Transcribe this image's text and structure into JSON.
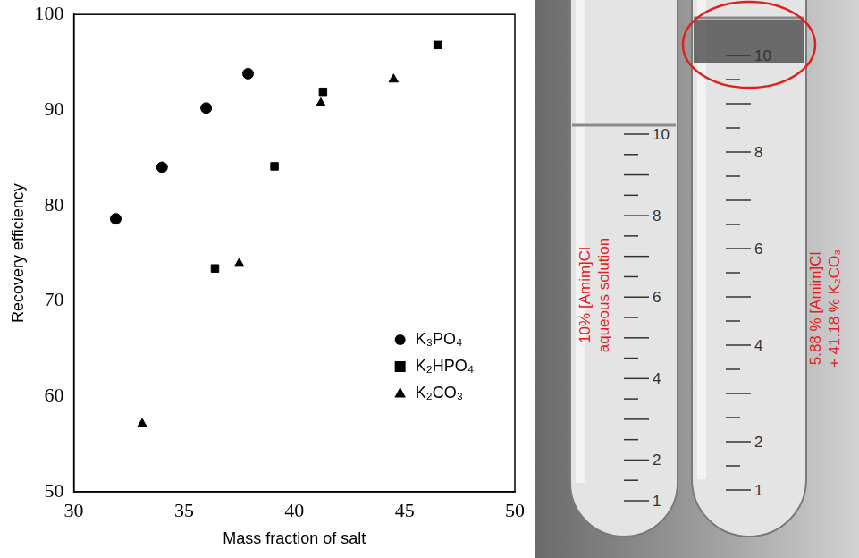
{
  "chart_data": {
    "type": "scatter",
    "xlabel": "Mass fraction of salt",
    "ylabel": "Recovery efficiency",
    "xlim": [
      30,
      50
    ],
    "xticks": [
      30,
      35,
      40,
      45,
      50
    ],
    "ylim": [
      50,
      100
    ],
    "yticks": [
      50,
      60,
      70,
      80,
      90,
      100
    ],
    "grid": false,
    "legend": "lower right",
    "series": [
      {
        "name": "K₃PO₄",
        "color": "#000000",
        "marker": "circle",
        "x": [
          31.9,
          34.0,
          36.0,
          37.9
        ],
        "values": [
          78.6,
          84.0,
          90.2,
          93.8
        ]
      },
      {
        "name": "K₂HPO₄",
        "color": "#000000",
        "marker": "square",
        "x": [
          36.4,
          39.1,
          41.3,
          46.5
        ],
        "values": [
          73.4,
          84.1,
          91.9,
          96.8
        ]
      },
      {
        "name": "K₂CO₃",
        "color": "#000000",
        "marker": "triangle",
        "x": [
          33.1,
          37.5,
          41.2,
          44.5
        ],
        "values": [
          57.1,
          73.9,
          90.7,
          93.2
        ]
      }
    ]
  },
  "photo": {
    "tubes": [
      {
        "label": "10% [Amim]Cl aqueous solution",
        "graduations": [
          1,
          2,
          4,
          6,
          8,
          10
        ]
      },
      {
        "label": "5.88 % [Amim]Cl + 41.18 % K₂CO₃",
        "graduations": [
          1,
          2,
          4,
          6,
          8,
          10
        ]
      }
    ]
  }
}
